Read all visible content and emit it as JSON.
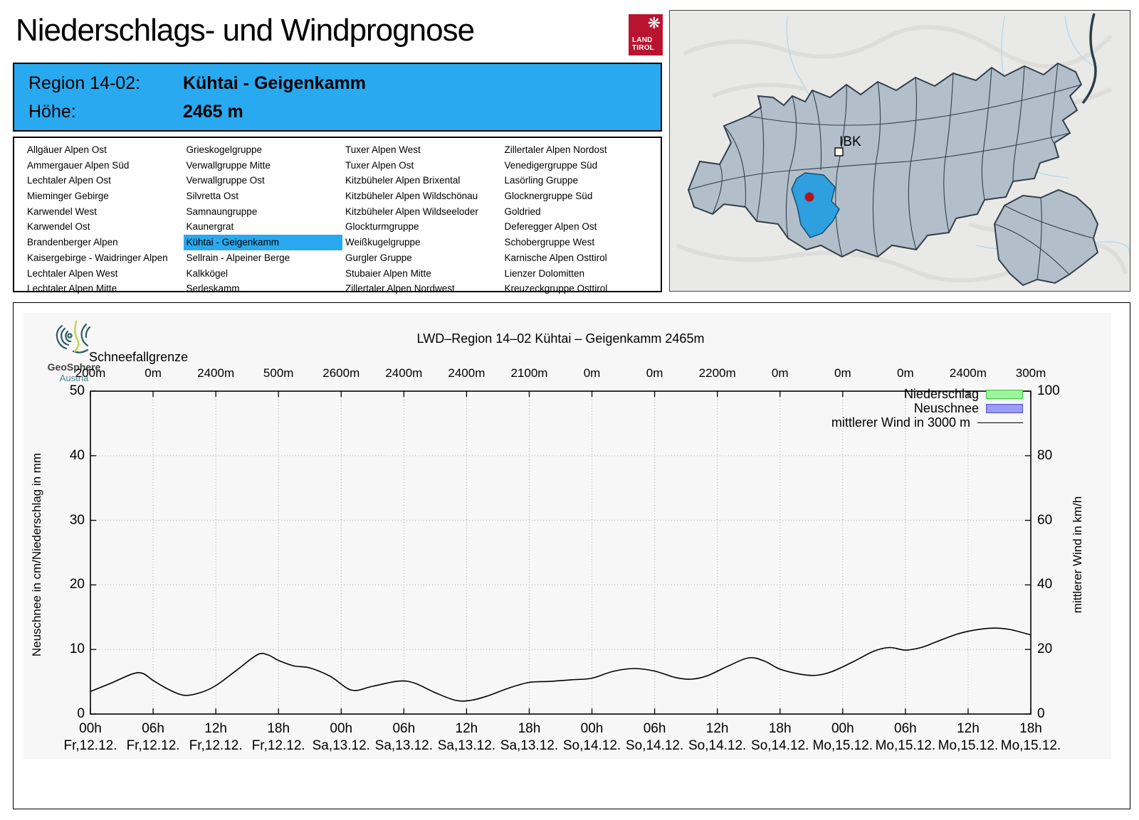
{
  "page": {
    "title": "Niederschlags- und Windprognose"
  },
  "tirol_logo": {
    "eagle_icon": "❋",
    "line1": "LAND",
    "line2": "TIROL",
    "color": "#b8142f"
  },
  "region_header": {
    "region_label": "Region 14-02:",
    "region_value": "Kühtai - Geigenkamm",
    "altitude_label": "Höhe:",
    "altitude_value": "2465 m",
    "bg_color": "#29a9f0"
  },
  "region_list": {
    "selected": "Kühtai - Geigenkamm",
    "highlight_color": "#29a9f0",
    "columns": [
      [
        "Allgäuer Alpen Ost",
        "Ammergauer Alpen Süd",
        "Lechtaler Alpen Ost",
        "Mieminger Gebirge",
        "Karwendel West",
        "Karwendel Ost",
        "Brandenberger Alpen",
        "Kaisergebirge - Waidringer Alpen",
        "Lechtaler Alpen West",
        "Lechtaler Alpen Mitte"
      ],
      [
        "Grieskogelgruppe",
        "Verwallgruppe Mitte",
        "Verwallgruppe Ost",
        "Silvretta Ost",
        "Samnaungruppe",
        "Kaunergrat",
        "Kühtai - Geigenkamm",
        "Sellrain - Alpeiner Berge",
        "Kalkkögel",
        "Serleskamm"
      ],
      [
        "Tuxer Alpen West",
        "Tuxer Alpen Ost",
        "Kitzbüheler Alpen Brixental",
        "Kitzbüheler Alpen Wildschönau",
        "Kitzbüheler Alpen Wildseeloder",
        "Glockturmgruppe",
        "Weißkugelgruppe",
        "Gurgler Gruppe",
        "Stubaier Alpen Mitte",
        "Zillertaler Alpen Nordwest"
      ],
      [
        "Zillertaler Alpen Nordost",
        "Venedigergruppe Süd",
        "Lasörling Gruppe",
        "Glocknergruppe Süd",
        "Goldried",
        "Deferegger Alpen Ost",
        "Schobergruppe West",
        "Karnische Alpen Osttirol",
        "Lienzer Dolomitten",
        "Kreuzeckgruppe Osttirol"
      ]
    ]
  },
  "map": {
    "city_label": "IBK",
    "land_color": "#b2bfcb",
    "border_color": "#333f49",
    "highlight_color": "#2e9fdf",
    "marker_color": "#b5121e"
  },
  "geosphere_logo": {
    "line1": "GeoSphere",
    "line2": "Austria"
  },
  "chart_data": {
    "type": "line",
    "title": "LWD–Region 14–02 Kühtai – Geigenkamm 2465m",
    "snowline_label": "Schneefallgrenze",
    "snowline_values": [
      "200m",
      "0m",
      "2400m",
      "500m",
      "2600m",
      "2400m",
      "2400m",
      "2100m",
      "0m",
      "0m",
      "2200m",
      "0m",
      "0m",
      "0m",
      "2400m",
      "300m"
    ],
    "x_hour_labels": [
      "00h",
      "06h",
      "12h",
      "18h",
      "00h",
      "06h",
      "12h",
      "18h",
      "00h",
      "06h",
      "12h",
      "18h",
      "00h",
      "06h",
      "12h",
      "18h"
    ],
    "x_date_labels": [
      "Fr,12.12.",
      "Fr,12.12.",
      "Fr,12.12.",
      "Fr,12.12.",
      "Sa,13.12.",
      "Sa,13.12.",
      "Sa,13.12.",
      "Sa,13.12.",
      "So,14.12.",
      "So,14.12.",
      "So,14.12.",
      "So,14.12.",
      "Mo,15.12.",
      "Mo,15.12.",
      "Mo,15.12.",
      "Mo,15.12."
    ],
    "ylabel_left": "Neuschnee in cm/Niederschlag in mm",
    "ylabel_right": "mittlerer Wind in km/h",
    "ylim_left": [
      0,
      50
    ],
    "ylim_right": [
      0,
      100
    ],
    "yticks_left": [
      0,
      10,
      20,
      30,
      40,
      50
    ],
    "yticks_right": [
      0,
      20,
      40,
      60,
      80,
      100
    ],
    "grid": true,
    "legend_position": "top-right",
    "legend": [
      {
        "label": "Niederschlag",
        "type": "box",
        "fill": "#9ef49a",
        "border": "#35c93c"
      },
      {
        "label": "Neuschnee",
        "type": "box",
        "fill": "#9c9cf0",
        "border": "#4d4dd4"
      },
      {
        "label": "mittlerer Wind in 3000 m",
        "type": "line",
        "color": "#000000"
      }
    ],
    "series": [
      {
        "name": "Niederschlag",
        "unit": "mm",
        "values": []
      },
      {
        "name": "Neuschnee",
        "unit": "cm",
        "values": []
      },
      {
        "name": "mittlerer Wind in 3000 m",
        "unit": "km/h",
        "axis": "right",
        "points": [
          [
            0,
            7.0
          ],
          [
            2,
            9.6
          ],
          [
            4,
            12.4
          ],
          [
            5,
            12.6
          ],
          [
            6,
            10.4
          ],
          [
            7.5,
            7.6
          ],
          [
            9,
            5.8
          ],
          [
            10.5,
            6.6
          ],
          [
            12,
            8.8
          ],
          [
            14,
            13.6
          ],
          [
            16,
            18.4
          ],
          [
            17,
            18.3
          ],
          [
            18,
            16.6
          ],
          [
            19.5,
            14.9
          ],
          [
            21,
            14.3
          ],
          [
            23,
            11.6
          ],
          [
            25,
            7.4
          ],
          [
            27,
            8.6
          ],
          [
            29.5,
            10.2
          ],
          [
            31,
            9.6
          ],
          [
            33,
            6.6
          ],
          [
            35,
            4.2
          ],
          [
            36.5,
            4.3
          ],
          [
            38,
            5.6
          ],
          [
            40,
            8.0
          ],
          [
            42,
            9.8
          ],
          [
            44,
            10.1
          ],
          [
            46,
            10.6
          ],
          [
            48,
            11.1
          ],
          [
            50,
            13.2
          ],
          [
            52,
            14.1
          ],
          [
            54,
            13.3
          ],
          [
            56,
            11.3
          ],
          [
            57.5,
            10.8
          ],
          [
            59,
            11.8
          ],
          [
            61,
            14.8
          ],
          [
            63,
            17.4
          ],
          [
            64.5,
            16.4
          ],
          [
            66,
            13.9
          ],
          [
            68,
            12.3
          ],
          [
            69.5,
            12.0
          ],
          [
            71,
            13.2
          ],
          [
            73,
            16.2
          ],
          [
            75,
            19.5
          ],
          [
            76.5,
            20.6
          ],
          [
            78,
            19.8
          ],
          [
            79.5,
            20.6
          ],
          [
            81,
            22.4
          ],
          [
            83,
            24.8
          ],
          [
            85,
            26.2
          ],
          [
            86.5,
            26.6
          ],
          [
            88,
            26.2
          ],
          [
            90,
            24.5
          ]
        ]
      }
    ],
    "x_hours_total": 90
  }
}
